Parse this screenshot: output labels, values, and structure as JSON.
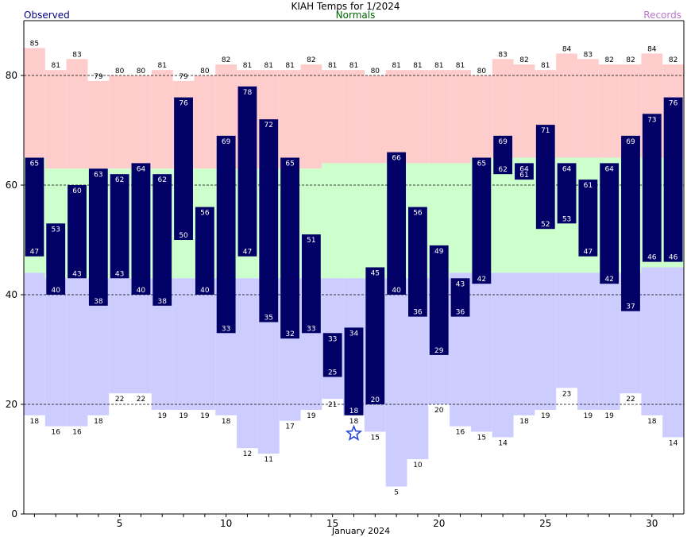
{
  "chart_data": {
    "type": "bar",
    "title": "KIAH Temps for 1/2024",
    "xlabel": "January 2024",
    "ylabel": "",
    "ylim": [
      0,
      90
    ],
    "xlim": [
      0.5,
      31.5
    ],
    "y_ticks": [
      "0",
      "20",
      "40",
      "60",
      "80"
    ],
    "x_ticks": [
      "5",
      "10",
      "15",
      "20",
      "25",
      "30"
    ],
    "grid": "dashed horizontal at 20, 40, 60, 80",
    "legend": {
      "observed": "Observed",
      "normals": "Normals",
      "records": "Records"
    },
    "colors": {
      "observed": "#000066",
      "observed_label": "#ffffff",
      "normals": "#ccffcc",
      "record_high": "#ffcccc",
      "record_low": "#ccccff",
      "legend_observed": "#000080",
      "legend_normals": "#006600",
      "legend_records": "#bb77cc",
      "marker": "#2244dd"
    },
    "days": [
      1,
      2,
      3,
      4,
      5,
      6,
      7,
      8,
      9,
      10,
      11,
      12,
      13,
      14,
      15,
      16,
      17,
      18,
      19,
      20,
      21,
      22,
      23,
      24,
      25,
      26,
      27,
      28,
      29,
      30,
      31
    ],
    "observed_high": [
      65,
      53,
      60,
      63,
      62,
      64,
      62,
      76,
      56,
      69,
      78,
      72,
      65,
      51,
      33,
      34,
      45,
      66,
      56,
      49,
      43,
      65,
      69,
      64,
      71,
      64,
      61,
      64,
      69,
      73,
      76
    ],
    "observed_low": [
      47,
      40,
      43,
      38,
      43,
      40,
      38,
      50,
      40,
      33,
      47,
      35,
      32,
      33,
      25,
      18,
      20,
      40,
      36,
      29,
      36,
      42,
      62,
      61,
      52,
      53,
      47,
      42,
      37,
      46,
      46
    ],
    "normal_high": [
      65,
      63,
      63,
      63,
      63,
      63,
      63,
      63,
      63,
      63,
      63,
      63,
      63,
      63,
      64,
      64,
      64,
      64,
      64,
      64,
      64,
      65,
      65,
      65,
      65,
      65,
      65,
      65,
      65,
      65,
      65
    ],
    "normal_low": [
      44,
      43,
      43,
      43,
      43,
      43,
      43,
      43,
      43,
      43,
      43,
      43,
      43,
      43,
      43,
      43,
      43,
      43,
      43,
      43,
      44,
      44,
      44,
      44,
      44,
      44,
      44,
      44,
      44,
      45,
      45
    ],
    "record_high": [
      85,
      81,
      83,
      79,
      80,
      80,
      81,
      79,
      80,
      82,
      81,
      81,
      81,
      82,
      81,
      81,
      80,
      81,
      81,
      81,
      81,
      80,
      83,
      82,
      81,
      84,
      83,
      82,
      82,
      84,
      82
    ],
    "record_low": [
      18,
      16,
      16,
      18,
      22,
      22,
      19,
      19,
      19,
      18,
      12,
      11,
      17,
      19,
      21,
      18,
      15,
      5,
      10,
      20,
      16,
      15,
      14,
      18,
      19,
      23,
      19,
      19,
      22,
      18,
      14
    ],
    "record_low_marker_day": 16
  }
}
